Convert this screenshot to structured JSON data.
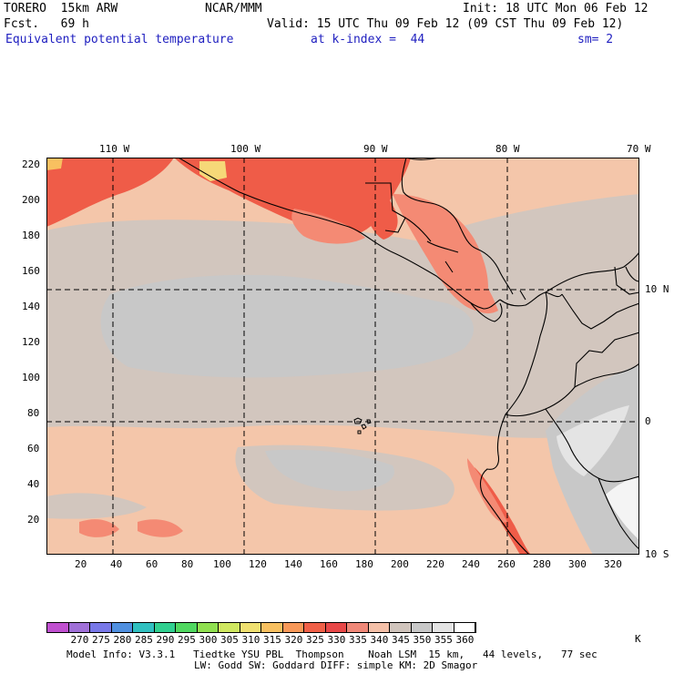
{
  "header": {
    "model": "TORERO  15km ARW",
    "org": "NCAR/MMM",
    "init": "Init: 18 UTC Mon 06 Feb 12",
    "fcst": "Fcst.   69 h",
    "valid": "Valid: 15 UTC Thu 09 Feb 12 (09 CST Thu 09 Feb 12)",
    "field": "Equivalent potential temperature",
    "level": "at k-index =  44",
    "smooth": "sm= 2"
  },
  "map": {
    "lon_labels": [
      "110 W",
      "100 W",
      "90 W",
      "80 W",
      "70 W"
    ],
    "lat_labels": [
      "10 N",
      "0",
      "10 S"
    ],
    "y_ticks": [
      "220",
      "200",
      "180",
      "160",
      "140",
      "120",
      "100",
      "80",
      "60",
      "40",
      "20"
    ],
    "x_ticks": [
      "20",
      "40",
      "60",
      "80",
      "100",
      "120",
      "140",
      "160",
      "180",
      "200",
      "220",
      "240",
      "260",
      "280",
      "300",
      "320"
    ]
  },
  "colorbar": {
    "unit": "K",
    "labels": [
      "270",
      "275",
      "280",
      "285",
      "290",
      "295",
      "300",
      "305",
      "310",
      "315",
      "320",
      "325",
      "330",
      "335",
      "340",
      "345",
      "350",
      "355",
      "360"
    ],
    "colors": [
      "#c050d0",
      "#a070d8",
      "#7878e8",
      "#5090e0",
      "#30c0c0",
      "#30d090",
      "#50d860",
      "#90e050",
      "#d0e860",
      "#f0e070",
      "#f8c060",
      "#f89858",
      "#f06048",
      "#e84848",
      "#f08878",
      "#f4c0a8",
      "#d0c4bc",
      "#c8c8c8",
      "#e4e4e4",
      "#ffffff"
    ]
  },
  "footer": {
    "line1": "Model Info: V3.3.1   Tiedtke YSU PBL  Thompson    Noah LSM  15 km,   44 levels,   77 sec",
    "line2": "LW: Godd SW: Goddard DIFF: simple KM: 2D Smagor"
  }
}
